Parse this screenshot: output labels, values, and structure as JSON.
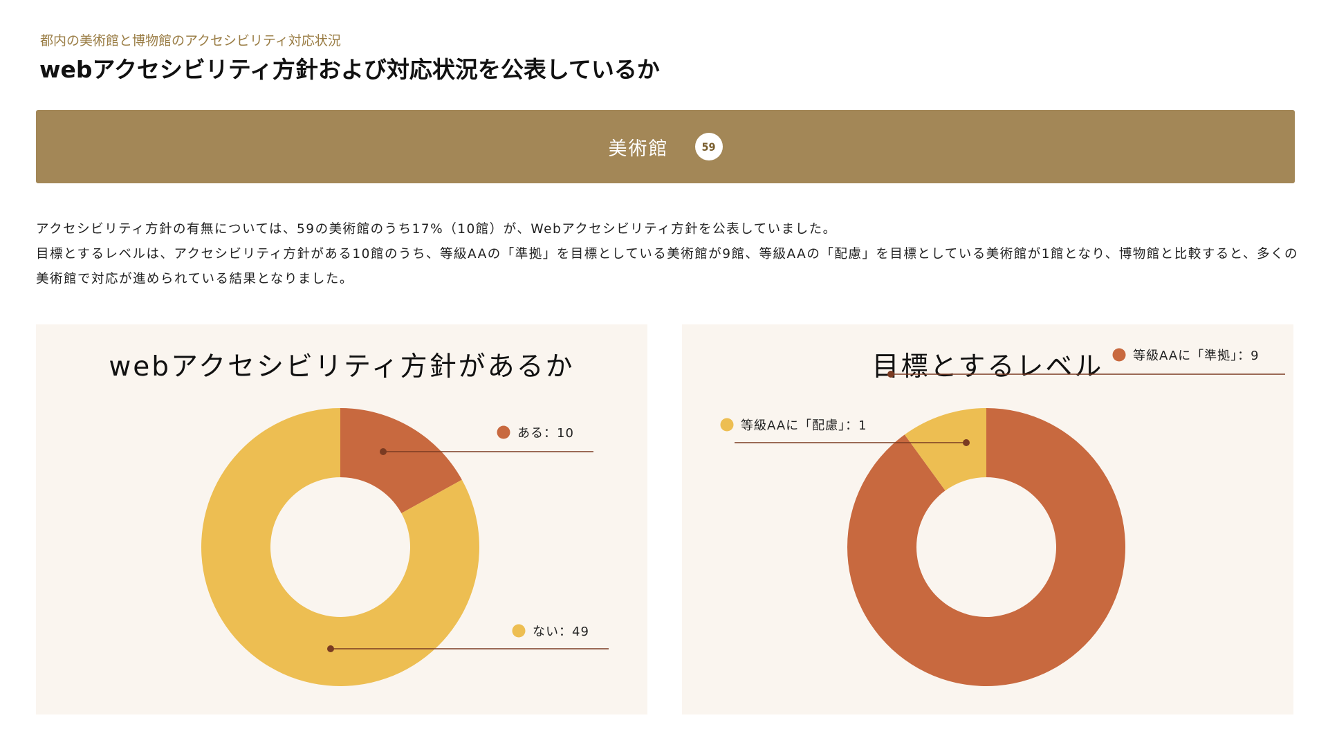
{
  "header": {
    "subtitle": "都内の美術館と博物館のアクセシビリティ対応状況",
    "title": "webアクセシビリティ方針および対応状況を公表しているか"
  },
  "banner": {
    "label": "美術館",
    "count": "59"
  },
  "description": {
    "line1": "アクセシビリティ方針の有無については、59の美術館のうち17%（10館）が、Webアクセシビリティ方針を公表していました。",
    "line2": "目標とするレベルは、アクセシビリティ方針がある10館のうち、等級AAの「準拠」を目標としている美術館が9館、等級AAの「配慮」を目標としている美術館が1館となり、博物館と比較すると、多くの美術館で対応が進められている結果となりました。"
  },
  "colors": {
    "orange": "#c8693f",
    "yellow": "#edbe52",
    "leader": "#7a3b22",
    "panel_bg": "#faf5ef",
    "banner_bg": "#a38757"
  },
  "chart_data": [
    {
      "type": "pie",
      "title": "webアクセシビリティ方針があるか",
      "donut": true,
      "slices": [
        {
          "label": "ある",
          "value": 10,
          "legend": "ある：10",
          "color": "#c8693f"
        },
        {
          "label": "ない",
          "value": 49,
          "legend": "ない：49",
          "color": "#edbe52"
        }
      ]
    },
    {
      "type": "pie",
      "title": "目標とするレベル",
      "donut": true,
      "slices": [
        {
          "label": "等級AAに「準拠」",
          "value": 9,
          "legend": "等級AAに「準拠」：9",
          "color": "#c8693f"
        },
        {
          "label": "等級AAに「配慮」",
          "value": 1,
          "legend": "等級AAに「配慮」：1",
          "color": "#edbe52"
        }
      ]
    }
  ]
}
